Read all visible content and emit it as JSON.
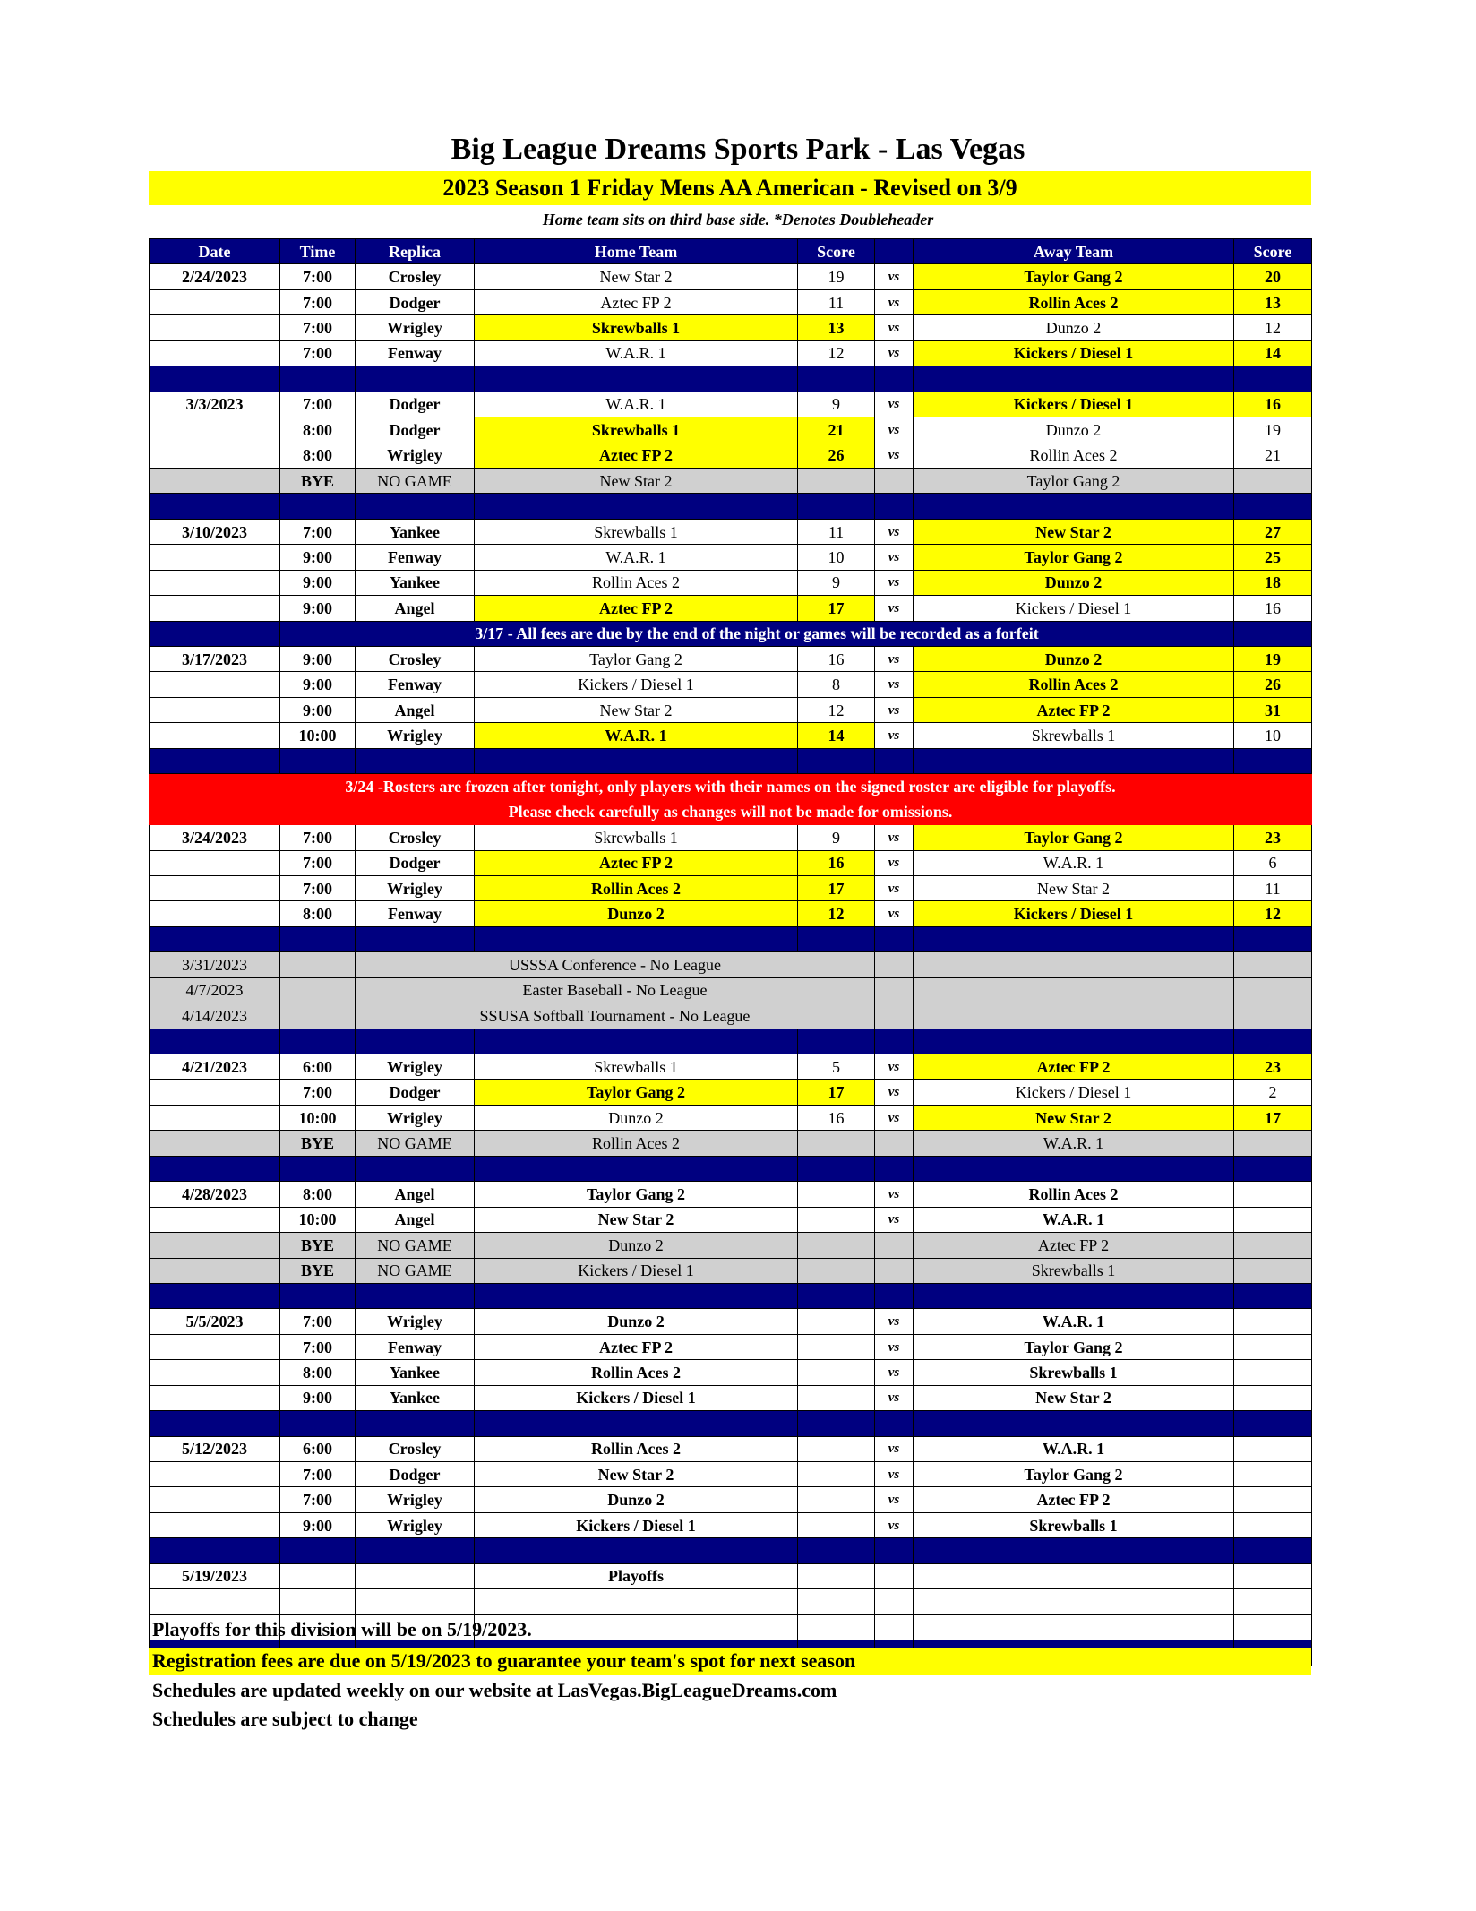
{
  "title": "Big League Dreams Sports Park - Las Vegas",
  "subtitle": "2023 Season 1 Friday Mens AA American - Revised on 3/9",
  "note": "Home team sits on third base side.  *Denotes Doubleheader",
  "headers": [
    "Date",
    "Time",
    "Replica",
    "Home Team",
    "Score",
    "",
    "Away Team",
    "Score"
  ],
  "vs": "vs",
  "colors": {
    "header": "#000080",
    "winner": "#ffff00",
    "alert": "#ff0000",
    "bye": "#d0d0d0"
  },
  "rows": [
    {
      "t": "g",
      "date": "2/24/2023",
      "time": "7:00",
      "replica": "Crosley",
      "home": "New Star 2",
      "hs": "19",
      "away": "Taylor Gang 2",
      "as": "20",
      "win": "away"
    },
    {
      "t": "g",
      "time": "7:00",
      "replica": "Dodger",
      "home": "Aztec FP 2",
      "hs": "11",
      "away": "Rollin Aces 2",
      "as": "13",
      "win": "away"
    },
    {
      "t": "g",
      "time": "7:00",
      "replica": "Wrigley",
      "home": "Skrewballs 1",
      "hs": "13",
      "away": "Dunzo 2",
      "as": "12",
      "win": "home"
    },
    {
      "t": "g",
      "time": "7:00",
      "replica": "Fenway",
      "home": "W.A.R. 1",
      "hs": "12",
      "away": "Kickers / Diesel 1",
      "as": "14",
      "win": "away"
    },
    {
      "t": "sep"
    },
    {
      "t": "g",
      "date": "3/3/2023",
      "time": "7:00",
      "replica": "Dodger",
      "home": "W.A.R. 1",
      "hs": "9",
      "away": "Kickers / Diesel 1",
      "as": "16",
      "win": "away"
    },
    {
      "t": "g",
      "time": "8:00",
      "replica": "Dodger",
      "home": "Skrewballs 1",
      "hs": "21",
      "away": "Dunzo 2",
      "as": "19",
      "win": "home"
    },
    {
      "t": "g",
      "time": "8:00",
      "replica": "Wrigley",
      "home": "Aztec FP 2",
      "hs": "26",
      "away": "Rollin Aces 2",
      "as": "21",
      "win": "home"
    },
    {
      "t": "bye",
      "time": "BYE",
      "replica": "NO GAME",
      "home": "New Star 2",
      "away": "Taylor Gang 2"
    },
    {
      "t": "sep"
    },
    {
      "t": "g",
      "date": "3/10/2023",
      "time": "7:00",
      "replica": "Yankee",
      "home": "Skrewballs 1",
      "hs": "11",
      "away": "New Star 2",
      "as": "27",
      "win": "away"
    },
    {
      "t": "g",
      "time": "9:00",
      "replica": "Fenway",
      "home": "W.A.R. 1",
      "hs": "10",
      "away": "Taylor Gang 2",
      "as": "25",
      "win": "away"
    },
    {
      "t": "g",
      "time": "9:00",
      "replica": "Yankee",
      "home": "Rollin Aces 2",
      "hs": "9",
      "away": "Dunzo 2",
      "as": "18",
      "win": "away"
    },
    {
      "t": "g",
      "time": "9:00",
      "replica": "Angel",
      "home": "Aztec FP 2",
      "hs": "17",
      "away": "Kickers / Diesel 1",
      "as": "16",
      "win": "home"
    },
    {
      "t": "blue",
      "text": "3/17 - All fees are due by the end of the night or games will be recorded as a forfeit"
    },
    {
      "t": "g",
      "date": "3/17/2023",
      "time": "9:00",
      "replica": "Crosley",
      "home": "Taylor Gang 2",
      "hs": "16",
      "away": "Dunzo 2",
      "as": "19",
      "win": "away"
    },
    {
      "t": "g",
      "time": "9:00",
      "replica": "Fenway",
      "home": "Kickers / Diesel 1",
      "hs": "8",
      "away": "Rollin Aces 2",
      "as": "26",
      "win": "away"
    },
    {
      "t": "g",
      "time": "9:00",
      "replica": "Angel",
      "home": "New Star 2",
      "hs": "12",
      "away": "Aztec FP 2",
      "as": "31",
      "win": "away"
    },
    {
      "t": "g",
      "time": "10:00",
      "replica": "Wrigley",
      "home": "W.A.R. 1",
      "hs": "14",
      "away": "Skrewballs 1",
      "as": "10",
      "win": "home"
    },
    {
      "t": "sep"
    },
    {
      "t": "red",
      "text": "3/24 -Rosters are frozen after tonight, only players with their names on the signed roster are eligible for playoffs."
    },
    {
      "t": "red",
      "text": "Please check carefully as changes will not be made for omissions."
    },
    {
      "t": "g",
      "date": "3/24/2023",
      "time": "7:00",
      "replica": "Crosley",
      "home": "Skrewballs 1",
      "hs": "9",
      "away": "Taylor Gang 2",
      "as": "23",
      "win": "away"
    },
    {
      "t": "g",
      "time": "7:00",
      "replica": "Dodger",
      "home": "Aztec FP 2",
      "hs": "16",
      "away": "W.A.R. 1",
      "as": "6",
      "win": "home"
    },
    {
      "t": "g",
      "time": "7:00",
      "replica": "Wrigley",
      "home": "Rollin Aces 2",
      "hs": "17",
      "away": "New Star 2",
      "as": "11",
      "win": "home"
    },
    {
      "t": "g",
      "time": "8:00",
      "replica": "Fenway",
      "home": "Dunzo 2",
      "hs": "12",
      "away": "Kickers / Diesel 1",
      "as": "12",
      "win": "both"
    },
    {
      "t": "sep"
    },
    {
      "t": "off",
      "date": "3/31/2023",
      "text": "USSSA Conference - No League"
    },
    {
      "t": "off",
      "date": "4/7/2023",
      "text": "Easter Baseball - No League"
    },
    {
      "t": "off",
      "date": "4/14/2023",
      "text": "SSUSA Softball Tournament - No League"
    },
    {
      "t": "sep"
    },
    {
      "t": "g",
      "date": "4/21/2023",
      "time": "6:00",
      "replica": "Wrigley",
      "home": "Skrewballs 1",
      "hs": "5",
      "away": "Aztec FP 2",
      "as": "23",
      "win": "away"
    },
    {
      "t": "g",
      "time": "7:00",
      "replica": "Dodger",
      "home": "Taylor Gang 2",
      "hs": "17",
      "away": "Kickers / Diesel 1",
      "as": "2",
      "win": "home"
    },
    {
      "t": "g",
      "time": "10:00",
      "replica": "Wrigley",
      "home": "Dunzo 2",
      "hs": "16",
      "away": "New Star 2",
      "as": "17",
      "win": "away"
    },
    {
      "t": "bye",
      "time": "BYE",
      "replica": "NO GAME",
      "home": "Rollin Aces 2",
      "away": "W.A.R. 1"
    },
    {
      "t": "sep"
    },
    {
      "t": "g",
      "bold": true,
      "date": "4/28/2023",
      "time": "8:00",
      "replica": "Angel",
      "home": "Taylor Gang 2",
      "away": "Rollin Aces 2"
    },
    {
      "t": "g",
      "bold": true,
      "time": "10:00",
      "replica": "Angel",
      "home": "New Star 2",
      "away": "W.A.R. 1"
    },
    {
      "t": "bye",
      "time": "BYE",
      "replica": "NO GAME",
      "home": "Dunzo 2",
      "away": "Aztec FP 2"
    },
    {
      "t": "bye",
      "time": "BYE",
      "replica": "NO GAME",
      "home": "Kickers / Diesel 1",
      "away": "Skrewballs 1"
    },
    {
      "t": "sep"
    },
    {
      "t": "g",
      "bold": true,
      "date": "5/5/2023",
      "time": "7:00",
      "replica": "Wrigley",
      "home": "Dunzo 2",
      "away": "W.A.R. 1"
    },
    {
      "t": "g",
      "bold": true,
      "time": "7:00",
      "replica": "Fenway",
      "home": "Aztec FP 2",
      "away": "Taylor Gang 2"
    },
    {
      "t": "g",
      "bold": true,
      "time": "8:00",
      "replica": "Yankee",
      "home": "Rollin Aces 2",
      "away": "Skrewballs 1"
    },
    {
      "t": "g",
      "bold": true,
      "time": "9:00",
      "replica": "Yankee",
      "home": "Kickers / Diesel 1",
      "away": "New Star 2"
    },
    {
      "t": "sep"
    },
    {
      "t": "g",
      "bold": true,
      "date": "5/12/2023",
      "time": "6:00",
      "replica": "Crosley",
      "home": "Rollin Aces 2",
      "away": "W.A.R. 1"
    },
    {
      "t": "g",
      "bold": true,
      "time": "7:00",
      "replica": "Dodger",
      "home": "New Star 2",
      "away": "Taylor Gang 2"
    },
    {
      "t": "g",
      "bold": true,
      "time": "7:00",
      "replica": "Wrigley",
      "home": "Dunzo 2",
      "away": "Aztec FP 2"
    },
    {
      "t": "g",
      "bold": true,
      "time": "9:00",
      "replica": "Wrigley",
      "home": "Kickers / Diesel 1",
      "away": "Skrewballs 1"
    },
    {
      "t": "sep"
    },
    {
      "t": "g",
      "bold": true,
      "novs": true,
      "date": "5/19/2023",
      "home": "Playoffs"
    },
    {
      "t": "g",
      "novs": true
    },
    {
      "t": "g",
      "novs": true
    },
    {
      "t": "sep"
    }
  ],
  "footer": {
    "playoffs": "Playoffs for this division will be on 5/19/2023.",
    "registration": "Registration fees are due on 5/19/2023 to guarantee your team's spot for next season",
    "website": "Schedules are updated weekly on our website at LasVegas.BigLeagueDreams.com",
    "change": "Schedules are subject to change"
  }
}
